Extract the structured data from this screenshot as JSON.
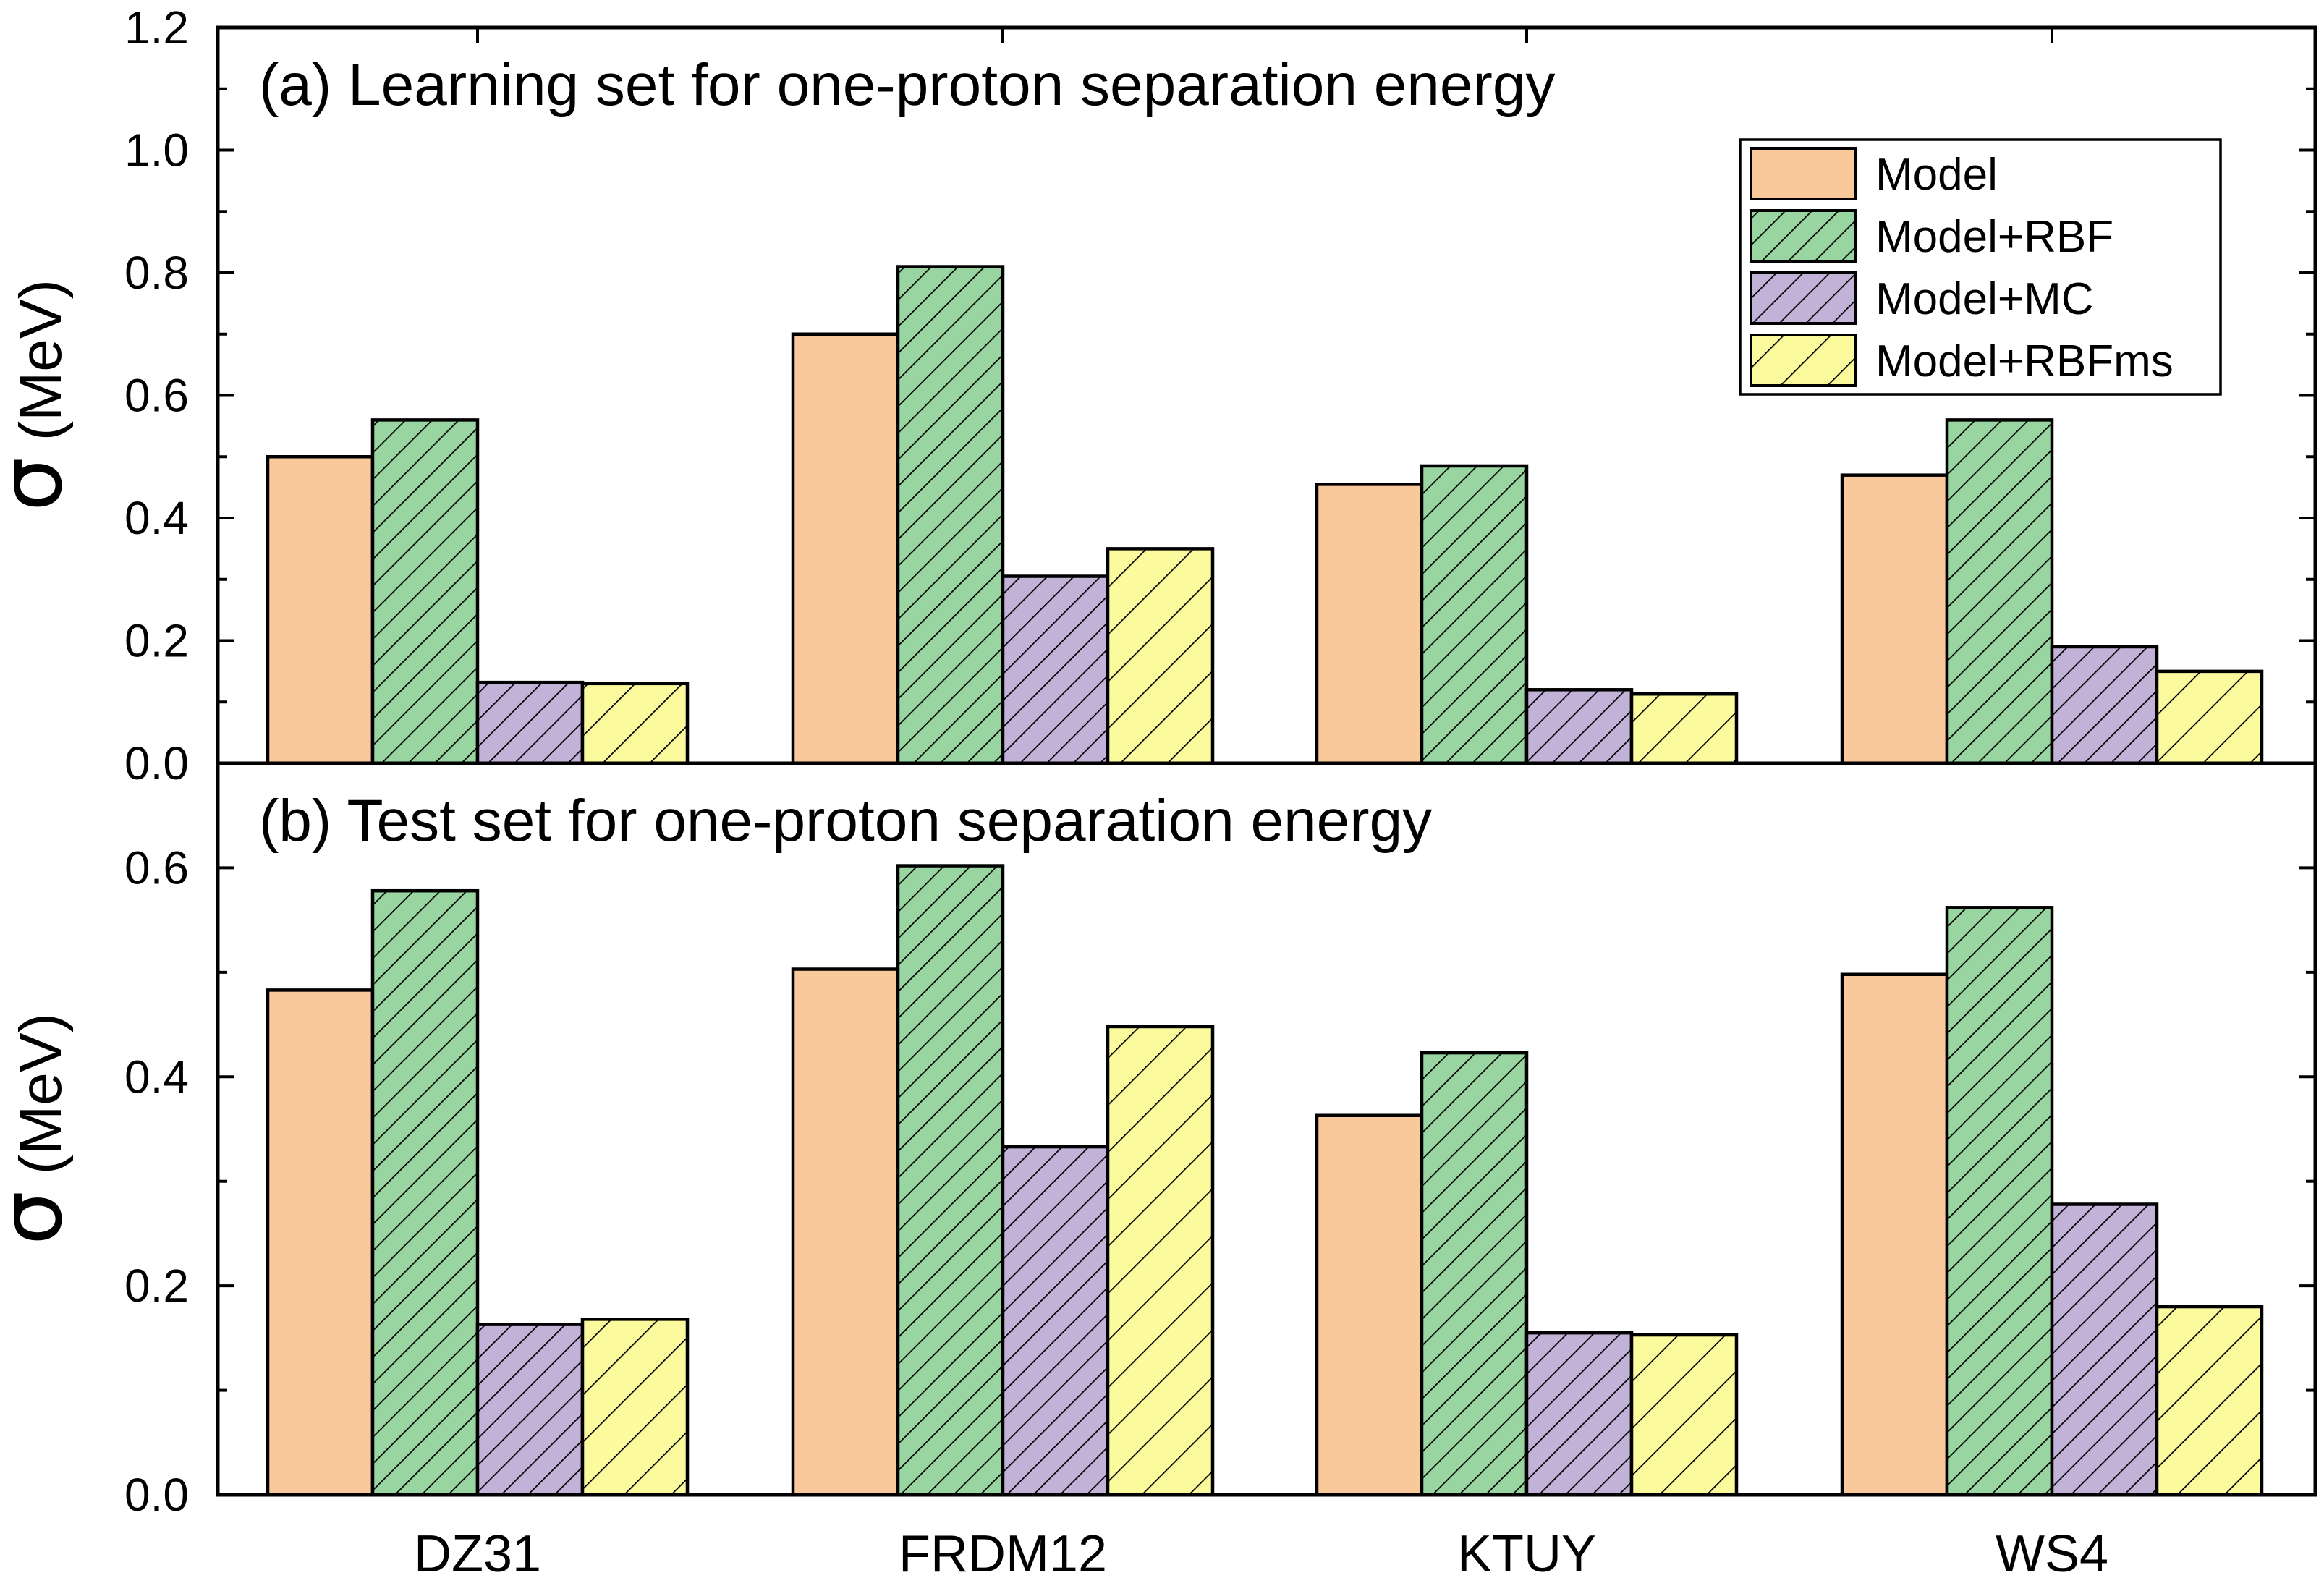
{
  "chart_data": {
    "type": "bar",
    "categories": [
      "DZ31",
      "FRDM12",
      "KTUY",
      "WS4"
    ],
    "legend": {
      "placement": "top-right of panel (a)",
      "entries": [
        {
          "label": "Model",
          "fill": "#f9c89b",
          "hatch": false
        },
        {
          "label": "Model+RBF",
          "fill": "#99d5a1",
          "hatch": true
        },
        {
          "label": "Model+MC",
          "fill": "#c2b2d8",
          "hatch": true
        },
        {
          "label": "Model+RBFms",
          "fill": "#fbfb9d",
          "hatch": true
        }
      ]
    },
    "panels": [
      {
        "id": "a",
        "title": "(a) Learning set for one-proton separation energy",
        "ylabel_symbol": "σ",
        "ylabel_unit": "(MeV)",
        "ylim": [
          0,
          1.2
        ],
        "yticks": [
          "0.0",
          "0.2",
          "0.4",
          "0.6",
          "0.8",
          "1.0",
          "1.2"
        ],
        "series": [
          {
            "name": "Model",
            "values": [
              0.5,
              0.7,
              0.455,
              0.47
            ]
          },
          {
            "name": "Model+RBF",
            "values": [
              0.56,
              0.81,
              0.485,
              0.56
            ]
          },
          {
            "name": "Model+MC",
            "values": [
              0.132,
              0.305,
              0.12,
              0.19
            ]
          },
          {
            "name": "Model+RBFms",
            "values": [
              0.13,
              0.35,
              0.113,
              0.15
            ]
          }
        ]
      },
      {
        "id": "b",
        "title": "(b) Test set for one-proton separation energy",
        "ylabel_symbol": "σ",
        "ylabel_unit": "(MeV)",
        "ylim": [
          0,
          0.7
        ],
        "yticks": [
          "0.0",
          "0.2",
          "0.4",
          "0.6"
        ],
        "series": [
          {
            "name": "Model",
            "values": [
              0.483,
              0.503,
              0.363,
              0.498
            ]
          },
          {
            "name": "Model+RBF",
            "values": [
              0.578,
              0.602,
              0.423,
              0.562
            ]
          },
          {
            "name": "Model+MC",
            "values": [
              0.163,
              0.333,
              0.155,
              0.278
            ]
          },
          {
            "name": "Model+RBFms",
            "values": [
              0.168,
              0.448,
              0.153,
              0.18
            ]
          }
        ]
      }
    ],
    "grid": false
  }
}
